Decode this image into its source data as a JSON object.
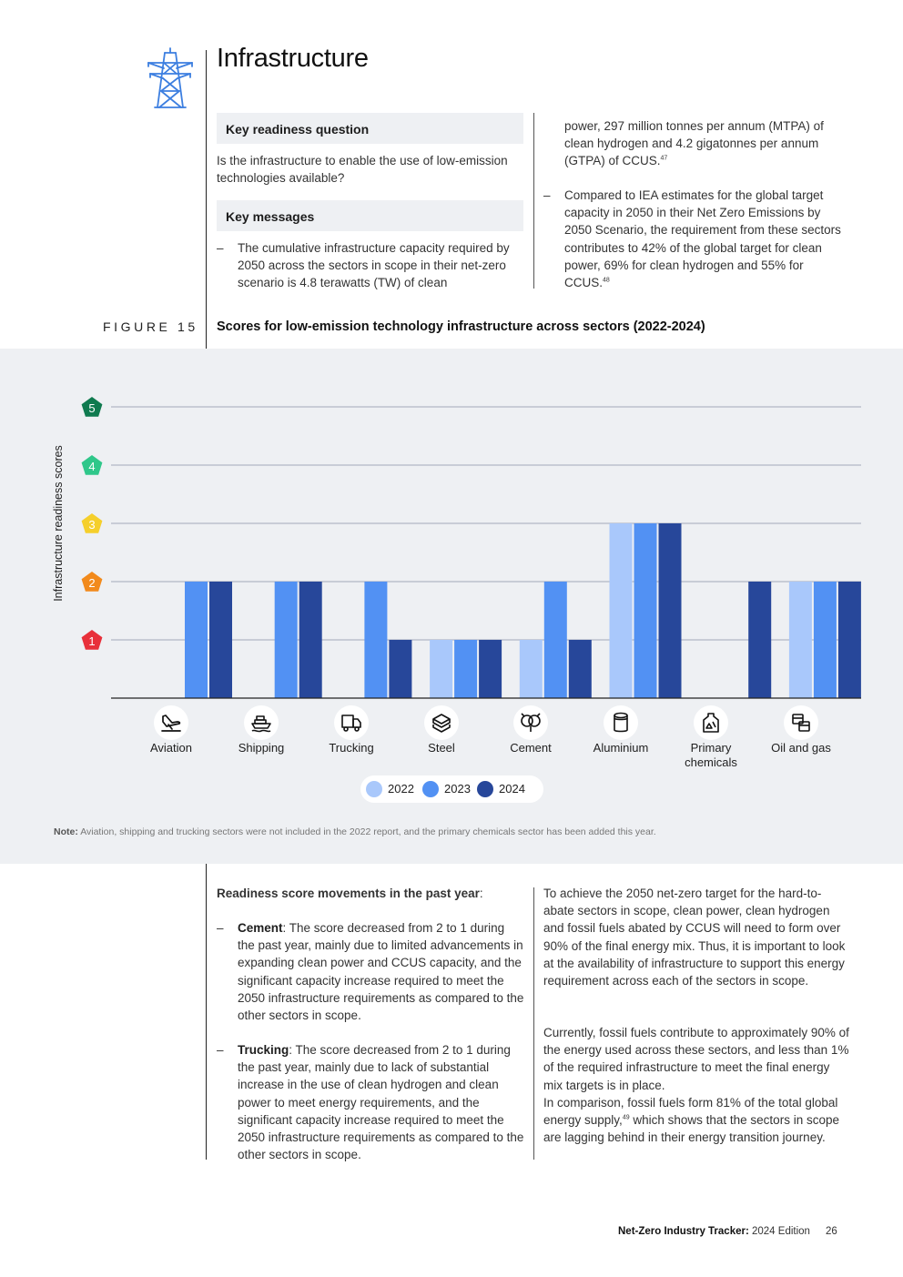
{
  "header": {
    "title": "Infrastructure",
    "icon": "power-pylon-icon"
  },
  "readiness": {
    "question_heading": "Key readiness question",
    "question": "Is the infrastructure to enable the use of low-emission technologies available?",
    "messages_heading": "Key messages",
    "message_1": "The cumulative infrastructure capacity required by 2050 across the sectors in scope in their net-zero scenario is 4.8 terawatts (TW) of clean power, 297 million tonnes per annum (MTPA) of clean hydrogen and 4.2 gigatonnes per annum (GTPA) of CCUS.",
    "message_1_col1": "The cumulative infrastructure capacity required by 2050 across the sectors in scope in their net-zero scenario is 4.8 terawatts (TW) of clean",
    "message_1_col2": "power, 297 million tonnes per annum (MTPA) of clean hydrogen and 4.2 gigatonnes per annum (GTPA) of CCUS.",
    "message_1_ref": "47",
    "message_2": "Compared to IEA estimates for the global target capacity in 2050 in their Net Zero Emissions by 2050 Scenario, the requirement from these sectors contributes to 42% of the global target for clean power, 69% for clean hydrogen and 55% for CCUS.",
    "message_2_ref": "48"
  },
  "figure": {
    "label": "FIGURE 15",
    "title": "Scores for low-emission technology infrastructure across sectors (2022-2024)",
    "note_label": "Note:",
    "note": "Aviation, shipping and trucking sectors were not included in the 2022 report, and the primary chemicals sector has been added this year."
  },
  "chart_data": {
    "type": "bar",
    "ylabel": "Infrastructure readiness scores",
    "ylim": [
      0,
      5
    ],
    "yticks": [
      "1",
      "2",
      "3",
      "4",
      "5"
    ],
    "ytick_colors": [
      "#e8303a",
      "#f28a1c",
      "#f5cf2b",
      "#2fc78a",
      "#0f7a4f"
    ],
    "categories": [
      "Aviation",
      "Shipping",
      "Trucking",
      "Steel",
      "Cement",
      "Aluminium",
      "Primary chemicals",
      "Oil and gas"
    ],
    "category_icons": [
      "airplane-icon",
      "ship-icon",
      "truck-icon",
      "steel-coil-icon",
      "cement-mixer-icon",
      "aluminium-can-icon",
      "chemical-flask-icon",
      "oil-barrel-icon"
    ],
    "series": [
      {
        "name": "2022",
        "color": "#a9c8fb",
        "values": [
          null,
          null,
          null,
          1,
          1,
          3,
          null,
          2
        ]
      },
      {
        "name": "2023",
        "color": "#5291f3",
        "values": [
          2,
          2,
          2,
          1,
          2,
          3,
          null,
          2
        ]
      },
      {
        "name": "2024",
        "color": "#27479a",
        "values": [
          2,
          2,
          1,
          1,
          1,
          3,
          2,
          2
        ]
      }
    ],
    "grid": true,
    "legend_position": "bottom-center"
  },
  "movements": {
    "heading": "Readiness score movements in the past year",
    "heading_suffix": ":",
    "cement_label": "Cement",
    "cement_text": ": The score decreased from 2 to 1 during the past year, mainly due to limited advancements in expanding clean power and CCUS capacity, and the significant capacity increase required to meet the 2050 infrastructure requirements as compared to the other sectors in scope.",
    "trucking_label": "Trucking",
    "trucking_text": ": The score decreased from 2 to 1 during the past year, mainly due to lack of substantial increase in the use of clean hydrogen and clean power to meet energy requirements, and the significant capacity increase required to meet the 2050 infrastructure requirements as compared to the other sectors in scope."
  },
  "body": {
    "para_1": "To achieve the 2050 net-zero target for the hard-to-abate sectors in scope, clean power, clean hydrogen and fossil fuels abated by CCUS will need to form over 90% of the final energy mix. Thus, it is important to look at the availability of infrastructure to support this energy requirement across each of the sectors in scope.",
    "para_2": "Currently, fossil fuels contribute to approximately 90% of the energy used across these sectors, and less than 1% of the required infrastructure to meet the final energy mix targets is in place.",
    "para_3a": "In comparison, fossil fuels form 81% of the total global energy supply,",
    "para_3_ref": "49",
    "para_3b": " which shows that the sectors in scope are lagging behind in their energy transition journey."
  },
  "footer": {
    "report": "Net-Zero Industry Tracker:",
    "edition": " 2024 Edition",
    "page": "26"
  }
}
